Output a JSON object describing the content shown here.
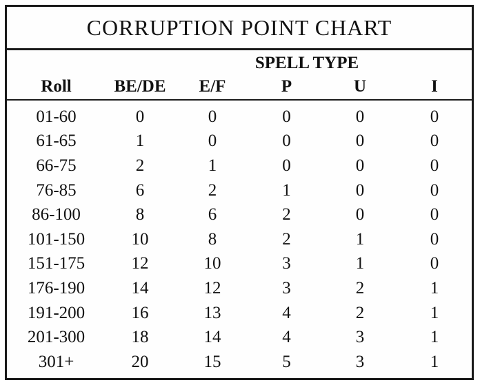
{
  "title": "Corruption Point Chart",
  "group_header": "SPELL TYPE",
  "columns": [
    "Roll",
    "BE/DE",
    "E/F",
    "P",
    "U",
    "I"
  ],
  "rows": [
    [
      "01-60",
      "0",
      "0",
      "0",
      "0",
      "0"
    ],
    [
      "61-65",
      "1",
      "0",
      "0",
      "0",
      "0"
    ],
    [
      "66-75",
      "2",
      "1",
      "0",
      "0",
      "0"
    ],
    [
      "76-85",
      "6",
      "2",
      "1",
      "0",
      "0"
    ],
    [
      "86-100",
      "8",
      "6",
      "2",
      "0",
      "0"
    ],
    [
      "101-150",
      "10",
      "8",
      "2",
      "1",
      "0"
    ],
    [
      "151-175",
      "12",
      "10",
      "3",
      "1",
      "0"
    ],
    [
      "176-190",
      "14",
      "12",
      "3",
      "2",
      "1"
    ],
    [
      "191-200",
      "16",
      "13",
      "4",
      "2",
      "1"
    ],
    [
      "201-300",
      "18",
      "14",
      "4",
      "3",
      "1"
    ],
    [
      "301+",
      "20",
      "15",
      "5",
      "3",
      "1"
    ]
  ]
}
